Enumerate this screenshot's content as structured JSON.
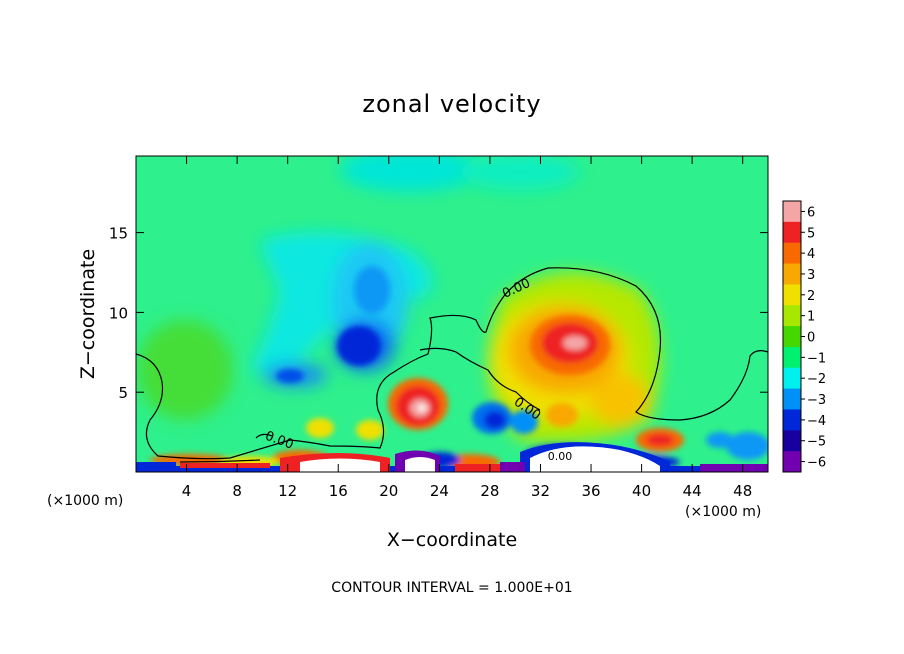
{
  "chart_data": {
    "type": "heatmap",
    "title": "zonal velocity",
    "xlabel": "X−coordinate",
    "ylabel": "Z−coordinate",
    "x_unit_left": "(×1000 m)",
    "x_unit_right": "(×1000 m)",
    "footer": "CONTOUR INTERVAL = 1.000E+01",
    "xlim": [
      0,
      50
    ],
    "ylim": [
      0,
      19.8
    ],
    "x_ticks": [
      4,
      8,
      12,
      16,
      20,
      24,
      28,
      32,
      36,
      40,
      44,
      48
    ],
    "x_tick_labels": [
      "4",
      "8",
      "12",
      "16",
      "20",
      "24",
      "28",
      "32",
      "36",
      "40",
      "44",
      "48"
    ],
    "y_ticks": [
      5,
      10,
      15
    ],
    "y_tick_labels": [
      "5",
      "10",
      "15"
    ],
    "colorbar": {
      "levels": [
        6,
        5,
        4,
        3,
        2,
        1,
        0,
        -1,
        -2,
        -3,
        -4,
        -5,
        -6
      ],
      "labels": [
        "6",
        "5",
        "4",
        "3",
        "2",
        "1",
        "0",
        "−1",
        "−2",
        "−3",
        "−4",
        "−5",
        "−6"
      ],
      "colors": [
        "#f4a6a6",
        "#ee2222",
        "#f86a00",
        "#f8a800",
        "#f0e000",
        "#a8e800",
        "#44d800",
        "#00f070",
        "#00f0f0",
        "#0090f8",
        "#0028d8",
        "#1800a0",
        "#7000b0"
      ]
    },
    "contour_labels": [
      "0.00",
      "0.00",
      "0.00",
      "0.00"
    ],
    "features": [
      {
        "x": 25,
        "z": 16.5,
        "value": 0.6
      },
      {
        "x": 17.5,
        "z": 8.0,
        "value": -4.8
      },
      {
        "x": 17.0,
        "z": 11.5,
        "value": -3.0
      },
      {
        "x": 12.5,
        "z": 6.2,
        "value": -3.2
      },
      {
        "x": 21.5,
        "z": 4.2,
        "value": 5.6
      },
      {
        "x": 34.0,
        "z": 8.2,
        "value": 5.2
      },
      {
        "x": 35.5,
        "z": 6.0,
        "value": 3.2
      },
      {
        "x": 28.5,
        "z": 3.6,
        "value": -3.8
      },
      {
        "x": 40.8,
        "z": 2.1,
        "value": 4.0
      },
      {
        "x": 48.0,
        "z": 1.2,
        "value": -3.0
      },
      {
        "x": 4.0,
        "z": 6.5,
        "value": 0.5
      },
      {
        "x": 10.0,
        "z": 0.5,
        "value": 4.5
      },
      {
        "x": 26.0,
        "z": 0.4,
        "value": -5.5
      },
      {
        "x": 14.0,
        "z": 3.0,
        "value": 2.0
      }
    ]
  }
}
